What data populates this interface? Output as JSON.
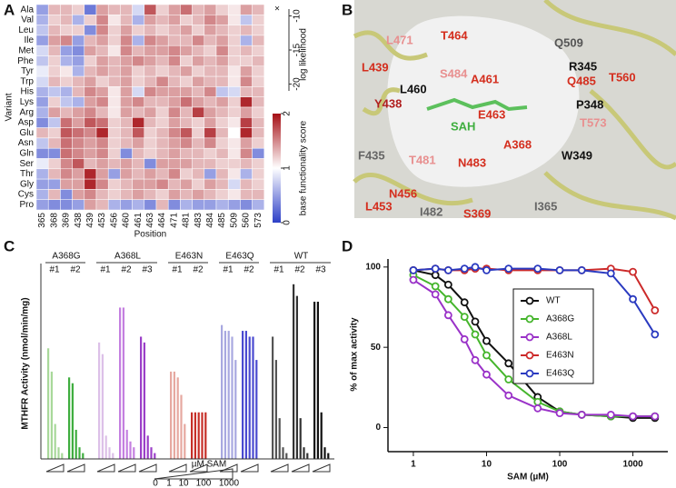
{
  "panel_labels": [
    "A",
    "B",
    "C",
    "D"
  ],
  "chart_data": [
    {
      "type": "heatmap",
      "x_label": "Position",
      "y_label": "Variant",
      "categories": [
        "365",
        "368",
        "369",
        "438",
        "439",
        "453",
        "456",
        "460",
        "461",
        "463",
        "464",
        "471",
        "481",
        "483",
        "484",
        "485",
        "509",
        "560",
        "573"
      ],
      "rows": [
        "Ala",
        "Val",
        "Leu",
        "Ile",
        "Met",
        "Phe",
        "Tyr",
        "Trp",
        "His",
        "Lys",
        "Arg",
        "Asp",
        "Glu",
        "Asn",
        "Gln",
        "Ser",
        "Thr",
        "Gly",
        "Cys",
        "Pro"
      ],
      "values": [
        [
          0.5,
          1.3,
          1.3,
          1.2,
          0.3,
          1.4,
          1.3,
          1.3,
          0.8,
          1.7,
          1.2,
          1.4,
          1.6,
          1.3,
          1.4,
          1.2,
          1.1,
          1.4,
          1.3
        ],
        [
          0.6,
          1.2,
          1.3,
          0.6,
          1.2,
          1.5,
          1.1,
          1.3,
          0.6,
          1.4,
          1.3,
          1.4,
          1.2,
          1.3,
          1.5,
          1.4,
          1.1,
          0.7,
          1.2
        ],
        [
          0.7,
          1.3,
          1.2,
          1.2,
          0.4,
          1.5,
          1.2,
          1.4,
          1.2,
          1.3,
          1.2,
          1.3,
          1.4,
          1.2,
          1.4,
          1.3,
          1.2,
          1.3,
          1.2
        ],
        [
          0.5,
          1.4,
          1.5,
          0.5,
          1.3,
          1.4,
          1.2,
          1.5,
          0.6,
          1.5,
          1.4,
          1.3,
          1.3,
          1.5,
          1.3,
          1.4,
          1.2,
          0.6,
          1.3
        ],
        [
          0.8,
          1.3,
          0.5,
          0.4,
          1.4,
          1.3,
          1.1,
          1.5,
          1.3,
          1.4,
          1.4,
          1.5,
          1.4,
          1.3,
          1.2,
          1.5,
          1.2,
          1.3,
          1.2
        ],
        [
          0.7,
          1.2,
          0.6,
          0.5,
          1.2,
          1.4,
          1.3,
          1.4,
          1.5,
          1.4,
          1.3,
          1.5,
          1.2,
          1.4,
          1.3,
          1.4,
          1.2,
          1.2,
          1.3
        ],
        [
          0.9,
          1.2,
          1.1,
          0.6,
          1.3,
          1.4,
          1.3,
          1.4,
          1.2,
          1.3,
          1.2,
          1.3,
          1.4,
          1.2,
          1.3,
          1.3,
          1.1,
          1.4,
          1.2
        ],
        [
          0.8,
          1.3,
          1.2,
          1.3,
          1.4,
          1.2,
          1.3,
          1.4,
          1.2,
          1.3,
          1.5,
          1.3,
          1.2,
          1.4,
          1.3,
          1.3,
          1.1,
          1.5,
          1.2
        ],
        [
          0.6,
          0.7,
          0.6,
          1.3,
          1.5,
          1.4,
          1.1,
          1.4,
          0.8,
          1.5,
          1.4,
          1.4,
          1.4,
          1.3,
          1.5,
          0.7,
          0.8,
          1.3,
          1.3
        ],
        [
          0.5,
          1.2,
          0.7,
          0.6,
          1.4,
          1.5,
          1.1,
          1.4,
          1.5,
          1.3,
          1.3,
          1.4,
          1.6,
          1.4,
          1.3,
          1.4,
          1.2,
          1.9,
          1.3
        ],
        [
          0.6,
          1.4,
          1.3,
          1.4,
          1.5,
          1.3,
          1.1,
          1.4,
          1.3,
          1.4,
          1.2,
          1.5,
          1.3,
          1.8,
          1.4,
          1.3,
          1.2,
          1.4,
          1.2
        ],
        [
          0.4,
          0.7,
          1.6,
          1.4,
          1.7,
          1.6,
          1.2,
          1.3,
          1.9,
          1.3,
          1.2,
          1.4,
          1.3,
          1.2,
          1.4,
          1.2,
          1.1,
          1.8,
          1.3
        ],
        [
          1.3,
          1.2,
          1.7,
          1.6,
          1.5,
          1.9,
          1.2,
          1.3,
          1.7,
          1.2,
          1.3,
          1.5,
          1.7,
          1.2,
          1.8,
          1.3,
          1.0,
          1.9,
          1.3
        ],
        [
          0.7,
          1.3,
          1.6,
          1.5,
          1.4,
          1.5,
          1.2,
          1.3,
          1.4,
          1.2,
          1.3,
          1.4,
          1.5,
          1.3,
          1.5,
          1.2,
          1.1,
          1.4,
          1.2
        ],
        [
          0.4,
          0.4,
          1.6,
          1.5,
          1.4,
          1.5,
          1.2,
          0.4,
          1.3,
          1.2,
          1.3,
          1.4,
          1.3,
          1.3,
          1.2,
          1.3,
          1.1,
          1.5,
          0.4
        ],
        [
          0.9,
          1.2,
          1.5,
          1.7,
          1.3,
          1.4,
          1.3,
          1.4,
          1.3,
          0.4,
          1.4,
          1.4,
          1.4,
          1.3,
          1.3,
          1.2,
          1.2,
          1.3,
          1.2
        ],
        [
          0.6,
          1.3,
          1.5,
          1.4,
          1.9,
          1.4,
          0.5,
          1.4,
          1.3,
          1.4,
          1.3,
          1.5,
          1.2,
          1.3,
          0.5,
          1.3,
          1.1,
          0.6,
          1.2
        ],
        [
          0.5,
          0.5,
          1.4,
          1.4,
          1.9,
          1.5,
          1.2,
          1.3,
          1.4,
          1.4,
          1.5,
          1.3,
          1.4,
          1.2,
          1.4,
          1.3,
          0.8,
          1.3,
          1.2
        ],
        [
          0.6,
          1.3,
          0.4,
          1.4,
          1.5,
          1.3,
          1.2,
          1.3,
          1.4,
          1.3,
          1.2,
          1.4,
          1.3,
          1.4,
          1.3,
          1.2,
          1.1,
          1.3,
          1.3
        ],
        [
          0.5,
          0.4,
          0.4,
          0.5,
          1.4,
          1.3,
          0.6,
          0.5,
          0.6,
          0.4,
          1.3,
          0.4,
          0.6,
          0.5,
          0.5,
          0.6,
          0.5,
          0.4,
          0.6
        ]
      ],
      "colorbar": {
        "label": "base functionality score",
        "lim": [
          0,
          2
        ],
        "ticks": [
          0,
          1,
          2
        ],
        "low_color": "#2d3fc7",
        "mid_color": "#ffffff",
        "high_color": "#a50f15"
      },
      "likelihood": {
        "label": "log likelihood",
        "marker": "×",
        "lim": [
          -9,
          -21
        ],
        "ticks": [
          -10,
          -15,
          -20
        ]
      }
    },
    {
      "type": "bar",
      "y_label": "MTHFR Activity (nmol/min/mg)",
      "ylim": [
        0,
        32
      ],
      "groups": [
        {
          "name": "A368G",
          "replicates": [
            {
              "label": "#1",
              "color": "#a8d89a",
              "values": [
                19,
                15,
                6,
                2,
                1
              ]
            },
            {
              "label": "#2",
              "color": "#3fae3f",
              "values": [
                14,
                13,
                5,
                2,
                1
              ]
            }
          ]
        },
        {
          "name": "A368L",
          "replicates": [
            {
              "label": "#1",
              "color": "#dcc0e8",
              "values": [
                20,
                18,
                4,
                2,
                1
              ]
            },
            {
              "label": "#2",
              "color": "#c47fe0",
              "values": [
                26,
                26,
                5,
                3,
                2
              ]
            },
            {
              "label": "#3",
              "color": "#9b3fc8",
              "values": [
                21,
                20,
                4,
                2,
                1
              ]
            }
          ]
        },
        {
          "name": "E463N",
          "replicates": [
            {
              "label": "#1",
              "color": "#e6a8a0",
              "values": [
                15,
                15,
                14,
                11,
                6
              ]
            },
            {
              "label": "#2",
              "color": "#c62f28",
              "values": [
                8,
                8,
                8,
                8,
                8
              ]
            }
          ]
        },
        {
          "name": "E463Q",
          "replicates": [
            {
              "label": "#1",
              "color": "#a8a8e0",
              "values": [
                23,
                22,
                22,
                21,
                17
              ]
            },
            {
              "label": "#2",
              "color": "#4a4ad0",
              "values": [
                22,
                22,
                21,
                21,
                17
              ]
            }
          ]
        },
        {
          "name": "WT",
          "replicates": [
            {
              "label": "#1",
              "color": "#555555",
              "values": [
                21,
                17,
                7,
                2,
                1
              ]
            },
            {
              "label": "#2",
              "color": "#333333",
              "values": [
                30,
                28,
                7,
                2,
                1
              ]
            },
            {
              "label": "#3",
              "color": "#111111",
              "values": [
                27,
                27,
                8,
                2,
                1
              ]
            }
          ]
        }
      ],
      "sam_legend": {
        "label": "µM SAM",
        "ticks": [
          0,
          1,
          10,
          100,
          1000
        ]
      }
    },
    {
      "type": "line",
      "x_label": "SAM (µM)",
      "y_label": "% of max activity",
      "xscale": "log",
      "x": [
        1,
        2,
        3,
        5,
        7,
        10,
        20,
        50,
        100,
        200,
        500,
        1000,
        2000
      ],
      "xlim": [
        0.45,
        3000
      ],
      "xticks": [
        1,
        10,
        100,
        1000
      ],
      "ylim": [
        -15,
        105
      ],
      "yticks": [
        0,
        50,
        100
      ],
      "legend": "center right",
      "series": [
        {
          "name": "WT",
          "color": "#111111",
          "values": [
            98,
            95,
            89,
            78,
            66,
            54,
            40,
            19,
            10,
            8,
            7,
            6,
            6
          ]
        },
        {
          "name": "A368G",
          "color": "#45b52c",
          "values": [
            95,
            88,
            80,
            69,
            58,
            45,
            30,
            16,
            10,
            8,
            7,
            7,
            7
          ]
        },
        {
          "name": "A368L",
          "color": "#9a32c8",
          "values": [
            92,
            83,
            70,
            55,
            42,
            33,
            20,
            12,
            9,
            8,
            8,
            7,
            7
          ]
        },
        {
          "name": "E463N",
          "color": "#cc2a2a",
          "values": [
            98,
            99,
            98,
            98,
            99,
            99,
            98,
            98,
            98,
            98,
            99,
            97,
            73
          ]
        },
        {
          "name": "E463Q",
          "color": "#2a3ac0",
          "values": [
            98,
            99,
            98,
            99,
            100,
            98,
            99,
            99,
            98,
            98,
            96,
            80,
            58
          ]
        }
      ]
    }
  ],
  "structure": {
    "residues": [
      "L471",
      "T464",
      "A461",
      "Q509",
      "L439",
      "S484",
      "R345",
      "T560",
      "Q485",
      "L460",
      "E463",
      "Y438",
      "SAH",
      "P348",
      "T573",
      "F435",
      "T481",
      "N483",
      "A368",
      "W349",
      "N456",
      "L453",
      "I482",
      "S369",
      "I365"
    ]
  }
}
